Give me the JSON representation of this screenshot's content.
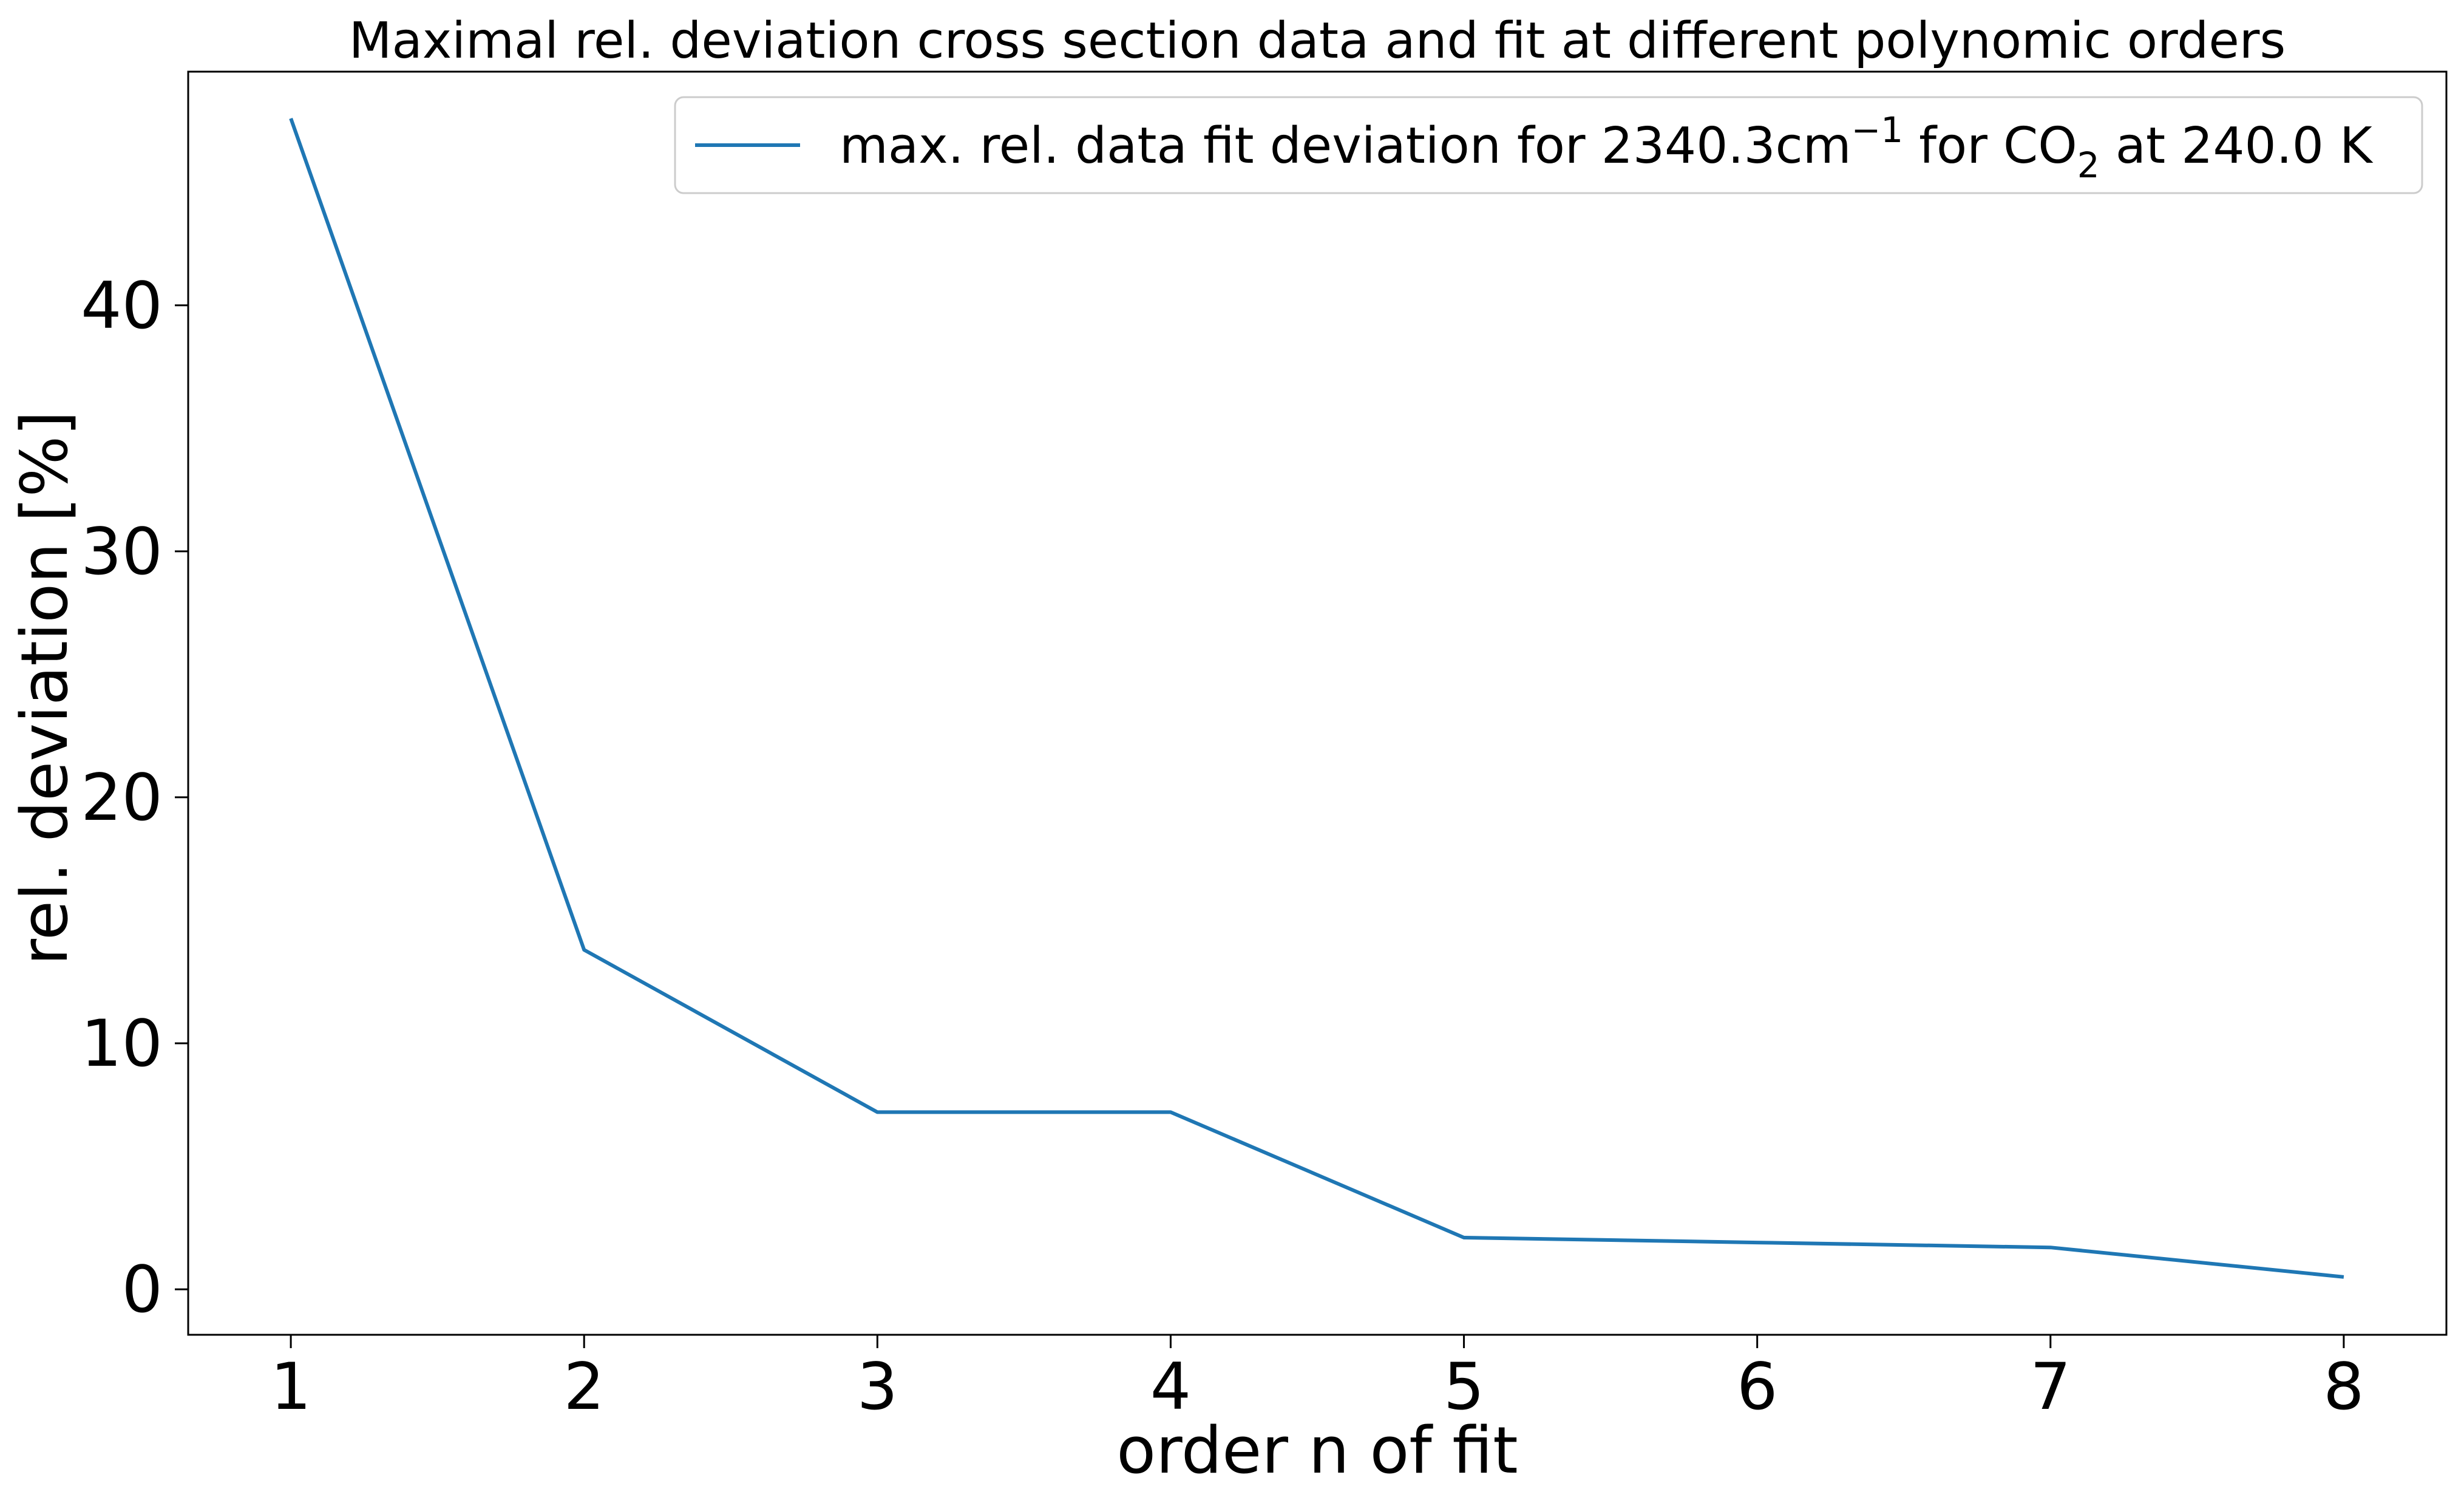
{
  "chart_data": {
    "type": "line",
    "title": "Maximal rel. deviation cross section data and fit at different polynomic orders",
    "xlabel": "order n of fit",
    "ylabel": "rel. deviation [%]",
    "xlim": [
      0.65,
      8.35
    ],
    "ylim": [
      -1.85,
      49.5
    ],
    "x_ticks": [
      1,
      2,
      3,
      4,
      5,
      6,
      7,
      8
    ],
    "y_ticks": [
      0,
      10,
      20,
      30,
      40
    ],
    "grid": false,
    "legend_position": "top-right",
    "series": [
      {
        "name": "max. rel. data fit deviation for 2340.3cm−1 for CO2 at 240.0 K",
        "legend": {
          "prefix": "max. rel. data fit deviation for 2340.3cm",
          "superscript": "−1",
          "middle": " for CO",
          "subscript": "2",
          "suffix": " at 240.0 K"
        },
        "color": "#1f77b4",
        "x": [
          1,
          2,
          3,
          4,
          5,
          6,
          7,
          8
        ],
        "y": [
          47.6,
          13.8,
          7.2,
          7.2,
          2.1,
          1.9,
          1.7,
          0.5
        ]
      }
    ]
  }
}
